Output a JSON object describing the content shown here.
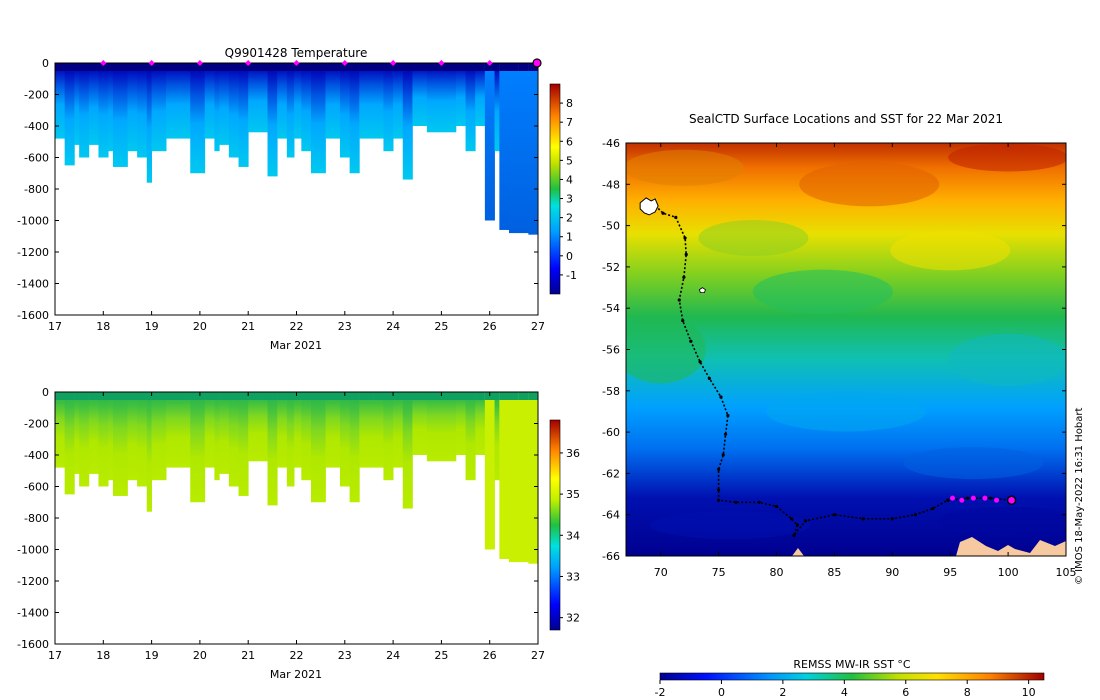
{
  "chart_data": [
    {
      "type": "heatmap",
      "title": "Q9901428  Temperature",
      "xlabel": "Mar 2021",
      "x_ticks": [
        "17",
        "18",
        "19",
        "20",
        "21",
        "22",
        "23",
        "24",
        "25",
        "26",
        "27"
      ],
      "xlim": [
        17,
        27
      ],
      "ylim": [
        -1600,
        0
      ],
      "y_ticks": [
        "0",
        "-200",
        "-400",
        "-600",
        "-800",
        "-1000",
        "-1200",
        "-1400",
        "-1600"
      ],
      "colorbar": {
        "min": -2,
        "max": 9,
        "ticks": [
          "-1",
          "0",
          "1",
          "2",
          "3",
          "4",
          "5",
          "6",
          "7",
          "8"
        ]
      },
      "profile_dates": [
        18,
        19,
        20,
        21,
        22,
        23,
        24,
        25,
        26
      ],
      "current_position_day": 27,
      "dive_depths": [
        [
          17.0,
          480
        ],
        [
          17.2,
          650
        ],
        [
          17.4,
          520
        ],
        [
          17.5,
          600
        ],
        [
          17.7,
          520
        ],
        [
          17.9,
          600
        ],
        [
          18.1,
          560
        ],
        [
          18.2,
          660
        ],
        [
          18.5,
          560
        ],
        [
          18.7,
          600
        ],
        [
          18.9,
          760
        ],
        [
          19.0,
          560
        ],
        [
          19.3,
          480
        ],
        [
          19.6,
          480
        ],
        [
          19.8,
          700
        ],
        [
          20.1,
          480
        ],
        [
          20.3,
          560
        ],
        [
          20.4,
          520
        ],
        [
          20.6,
          600
        ],
        [
          20.8,
          660
        ],
        [
          21.0,
          440
        ],
        [
          21.2,
          440
        ],
        [
          21.4,
          720
        ],
        [
          21.6,
          480
        ],
        [
          21.8,
          600
        ],
        [
          21.95,
          480
        ],
        [
          22.1,
          560
        ],
        [
          22.3,
          700
        ],
        [
          22.6,
          480
        ],
        [
          22.9,
          600
        ],
        [
          23.1,
          700
        ],
        [
          23.3,
          480
        ],
        [
          23.6,
          480
        ],
        [
          23.8,
          560
        ],
        [
          24.0,
          480
        ],
        [
          24.2,
          740
        ],
        [
          24.4,
          400
        ],
        [
          24.7,
          440
        ],
        [
          25.0,
          440
        ],
        [
          25.3,
          400
        ],
        [
          25.5,
          560
        ],
        [
          25.7,
          400
        ],
        [
          25.9,
          1000
        ],
        [
          26.1,
          560
        ],
        [
          26.2,
          1060
        ],
        [
          26.4,
          1080
        ],
        [
          26.6,
          1080
        ],
        [
          26.8,
          1090
        ]
      ]
    },
    {
      "type": "heatmap",
      "title": "",
      "xlabel": "Mar 2021",
      "x_ticks": [
        "17",
        "18",
        "19",
        "20",
        "21",
        "22",
        "23",
        "24",
        "25",
        "26",
        "27"
      ],
      "xlim": [
        17,
        27
      ],
      "ylim": [
        -1600,
        0
      ],
      "y_ticks": [
        "0",
        "-200",
        "-400",
        "-600",
        "-800",
        "-1000",
        "-1200",
        "-1400",
        "-1600"
      ],
      "colorbar": {
        "min": 31.7,
        "max": 36.8,
        "ticks": [
          "32",
          "33",
          "34",
          "35",
          "36"
        ]
      }
    },
    {
      "type": "heatmap",
      "title": "SealCTD Surface Locations and SST for 22 Mar 2021",
      "xlabel": "",
      "xlim": [
        67,
        105
      ],
      "ylim": [
        -66,
        -46
      ],
      "x_ticks": [
        "70",
        "75",
        "80",
        "85",
        "90",
        "95",
        "100",
        "105"
      ],
      "y_ticks": [
        "-46",
        "-48",
        "-50",
        "-52",
        "-54",
        "-56",
        "-58",
        "-60",
        "-62",
        "-64",
        "-66"
      ],
      "track": [
        [
          69.3,
          -48.9
        ],
        [
          70.2,
          -49.4
        ],
        [
          71.3,
          -49.6
        ],
        [
          72.1,
          -50.6
        ],
        [
          72.2,
          -51.4
        ],
        [
          72.0,
          -52.5
        ],
        [
          71.6,
          -53.6
        ],
        [
          71.9,
          -54.6
        ],
        [
          72.6,
          -55.6
        ],
        [
          73.4,
          -56.6
        ],
        [
          74.2,
          -57.4
        ],
        [
          75.2,
          -58.3
        ],
        [
          75.8,
          -59.2
        ],
        [
          75.6,
          -60.1
        ],
        [
          75.4,
          -61.1
        ],
        [
          75.0,
          -61.8
        ],
        [
          75.0,
          -62.8
        ],
        [
          75.0,
          -63.3
        ],
        [
          76.5,
          -63.4
        ],
        [
          78.5,
          -63.4
        ],
        [
          80.0,
          -63.6
        ],
        [
          81.3,
          -64.2
        ],
        [
          81.8,
          -64.5
        ],
        [
          81.5,
          -65.0
        ],
        [
          82.5,
          -64.3
        ],
        [
          85.0,
          -64.0
        ],
        [
          87.5,
          -64.2
        ],
        [
          90.0,
          -64.2
        ],
        [
          92.0,
          -64.0
        ],
        [
          93.5,
          -63.7
        ],
        [
          94.8,
          -63.3
        ],
        [
          96.5,
          -63.2
        ],
        [
          98.5,
          -63.2
        ],
        [
          100.3,
          -63.3
        ]
      ],
      "recent_positions": [
        [
          95.2,
          -63.2
        ],
        [
          96.0,
          -63.3
        ],
        [
          97.0,
          -63.2
        ],
        [
          98.0,
          -63.2
        ],
        [
          99.0,
          -63.3
        ]
      ],
      "current_position": [
        100.3,
        -63.3
      ],
      "islands": [
        [
          69.0,
          -49.2
        ],
        [
          73.6,
          -53.2
        ]
      ],
      "colorbar": {
        "label": "REMSS MW-IR SST °C",
        "min": -2,
        "max": 10.5,
        "ticks": [
          "-2",
          "0",
          "2",
          "4",
          "6",
          "8",
          "10"
        ]
      },
      "credit": "© IMOS 18-May-2022 16:31 Hobart"
    }
  ]
}
